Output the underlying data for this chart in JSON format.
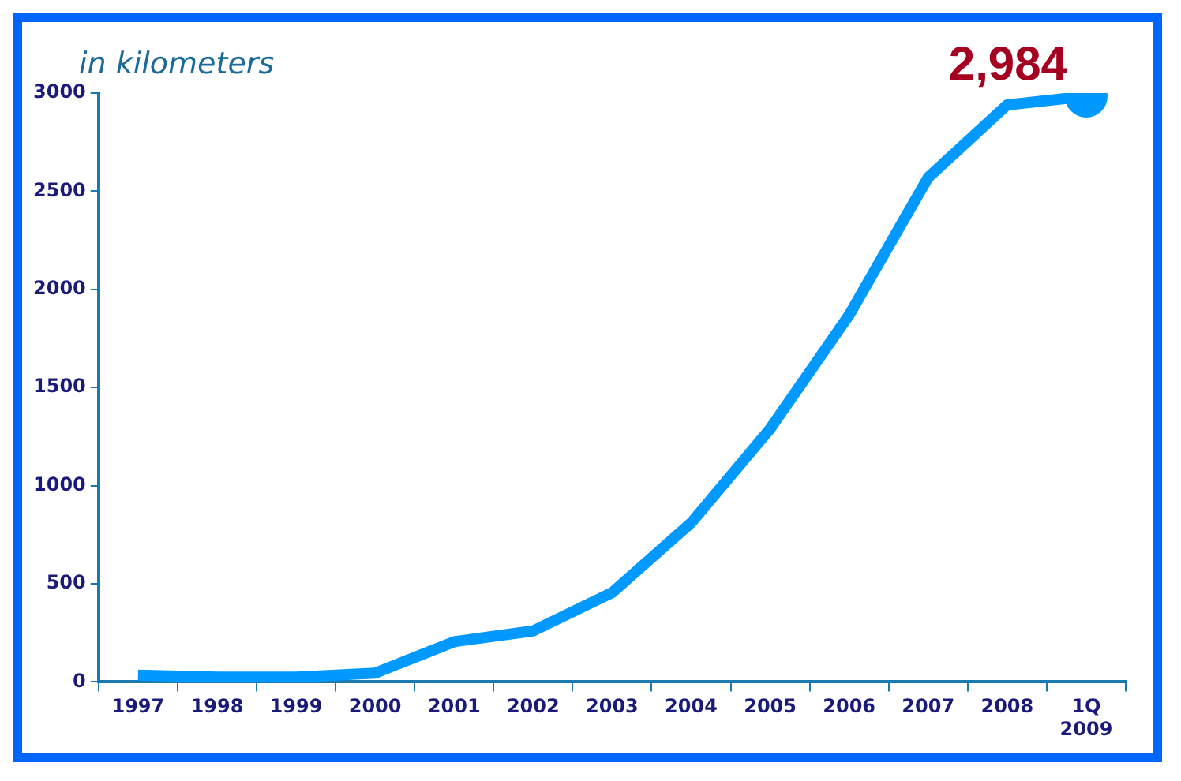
{
  "chart_data": {
    "type": "line",
    "ylabel": "in kilometers",
    "categories": [
      "1997",
      "1998",
      "1999",
      "2000",
      "2001",
      "2002",
      "2003",
      "2004",
      "2005",
      "2006",
      "2007",
      "2008",
      "1Q\n2009"
    ],
    "series": [
      {
        "color": "#0099ff",
        "values": [
          35,
          25,
          25,
          45,
          205,
          260,
          455,
          810,
          1290,
          1870,
          2570,
          2940,
          2984
        ],
        "value_labels": [
          null,
          null,
          null,
          null,
          null,
          null,
          null,
          null,
          null,
          null,
          null,
          null,
          "2,984"
        ]
      }
    ],
    "ylim": [
      0,
      3000
    ],
    "yticks": [
      0,
      500,
      1000,
      1500,
      2000,
      2500,
      3000
    ],
    "grid": false,
    "legend": false
  }
}
